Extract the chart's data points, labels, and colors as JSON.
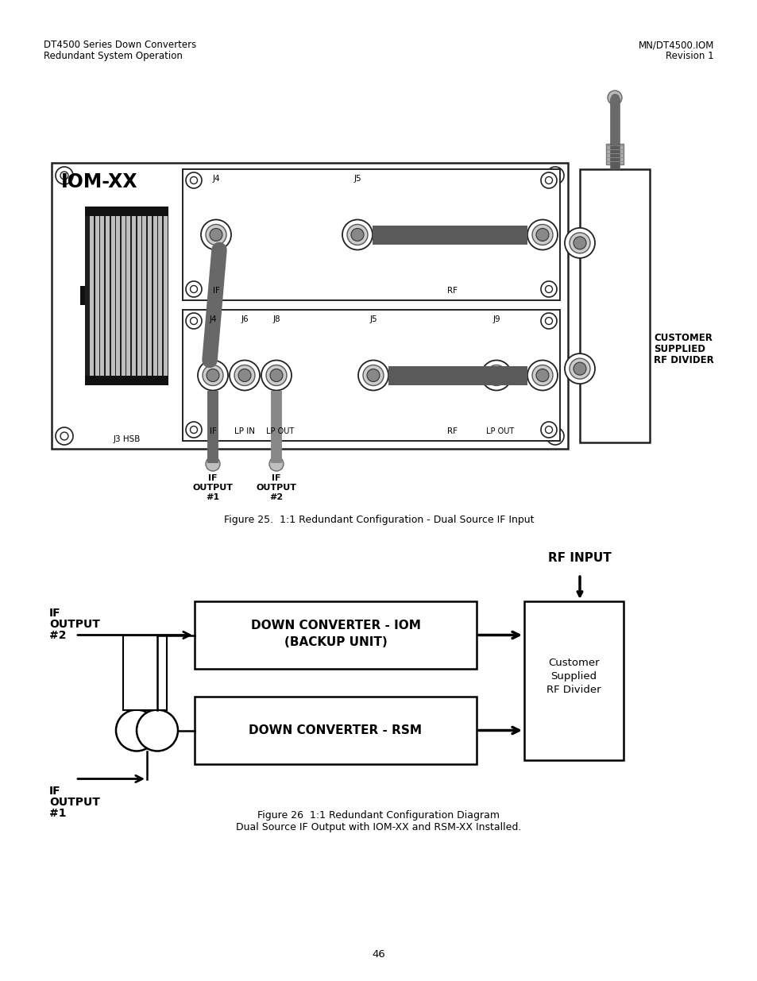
{
  "page_header_left": [
    "DT4500 Series Down Converters",
    "Redundant System Operation"
  ],
  "page_header_right": [
    "MN/DT4500.IOM",
    "Revision 1"
  ],
  "fig25_caption": "Figure 25.  1:1 Redundant Configuration - Dual Source IF Input",
  "fig26_caption_line1": "Figure 26  1:1 Redundant Configuration Diagram",
  "fig26_caption_line2": "Dual Source IF Output with IOM-XX and RSM-XX Installed.",
  "page_number": "46",
  "iom_label": "IOM-XX",
  "j3_label": "J3 HSB",
  "customer_supplied": [
    "CUSTOMER",
    "SUPPLIED",
    "RF DIVIDER"
  ],
  "if_output1": [
    "IF",
    "OUTPUT",
    "#1"
  ],
  "if_output2": [
    "IF",
    "OUTPUT",
    "#2"
  ],
  "rf_input_label": "RF INPUT",
  "dc_iom_label": [
    "DOWN CONVERTER - IOM",
    "(BACKUP UNIT)"
  ],
  "dc_rsm_label": "DOWN CONVERTER - RSM",
  "customer_rf_divider": [
    "Customer",
    "Supplied",
    "RF Divider"
  ],
  "if_out2_label": [
    "IF",
    "OUTPUT",
    "#2"
  ],
  "if_out1_label": [
    "IF",
    "OUTPUT",
    "#1"
  ],
  "bg_color": "#ffffff",
  "panel_border": "#222222",
  "cable_gray": "#5a5a5a",
  "connector_dark": "#4a4a4a"
}
